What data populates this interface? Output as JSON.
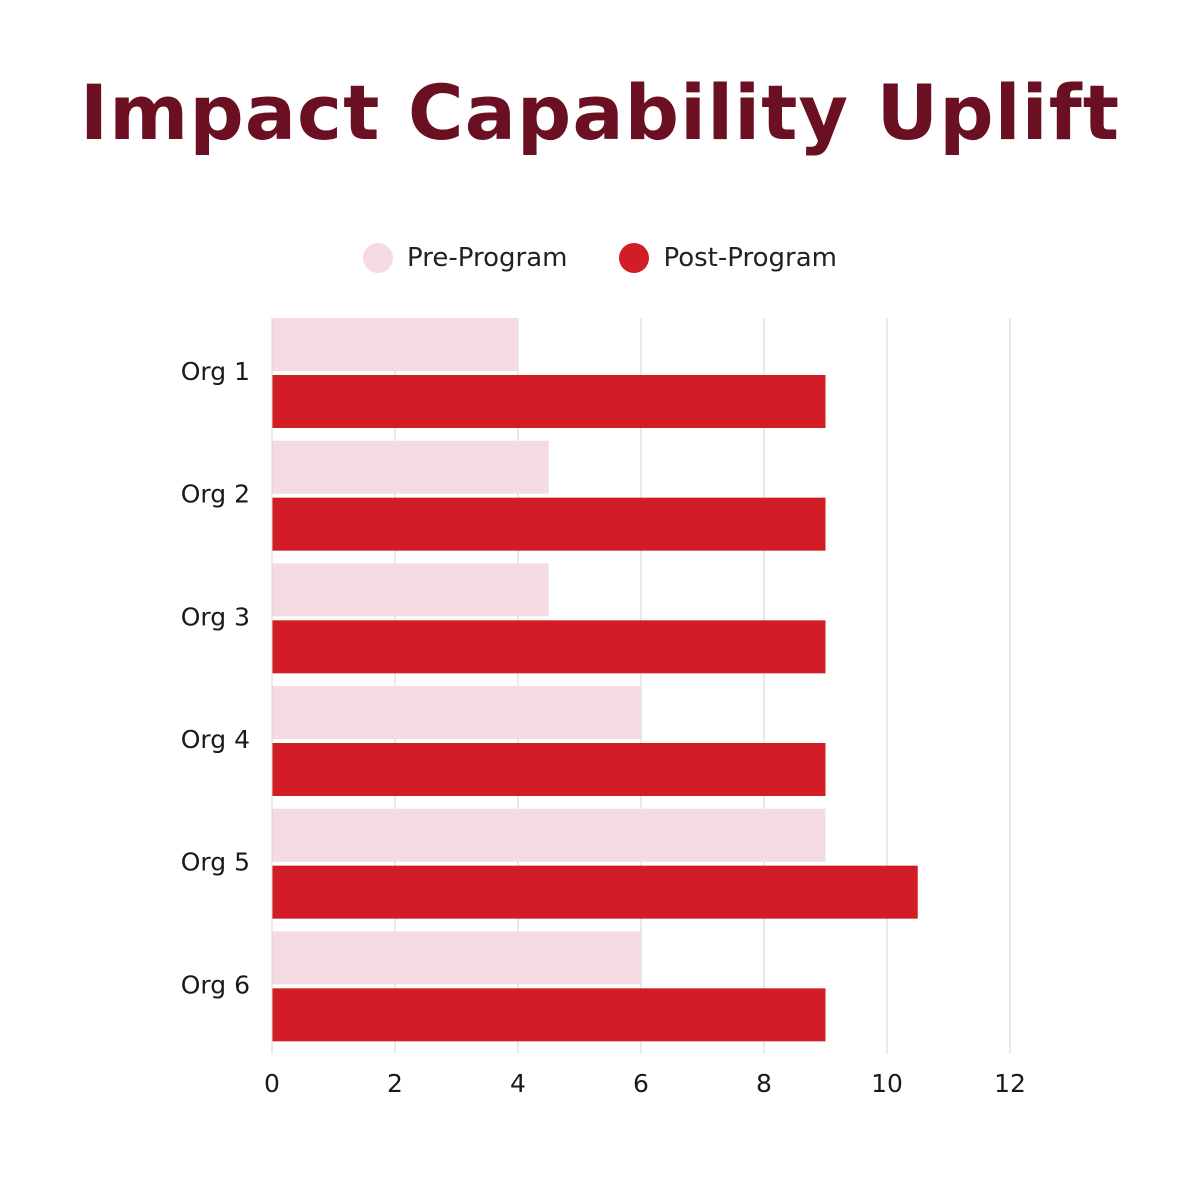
{
  "chart_data": {
    "type": "bar",
    "orientation": "horizontal",
    "title": "Impact Capability Uplift",
    "categories": [
      "Org 1",
      "Org 2",
      "Org 3",
      "Org 4",
      "Org 5",
      "Org 6"
    ],
    "series": [
      {
        "name": "Pre-Program",
        "color": "#f4dbe2",
        "values": [
          4,
          4.5,
          4.5,
          6,
          9,
          6
        ]
      },
      {
        "name": "Post-Program",
        "color": "#d21c26",
        "values": [
          9,
          9,
          9,
          9,
          10.5,
          9
        ]
      }
    ],
    "xticks": [
      "0",
      "2",
      "4",
      "6",
      "8",
      "10",
      "12"
    ],
    "xlim": [
      0,
      12
    ],
    "xlabel": "",
    "ylabel": "",
    "grid": true,
    "legend": "top-center"
  }
}
